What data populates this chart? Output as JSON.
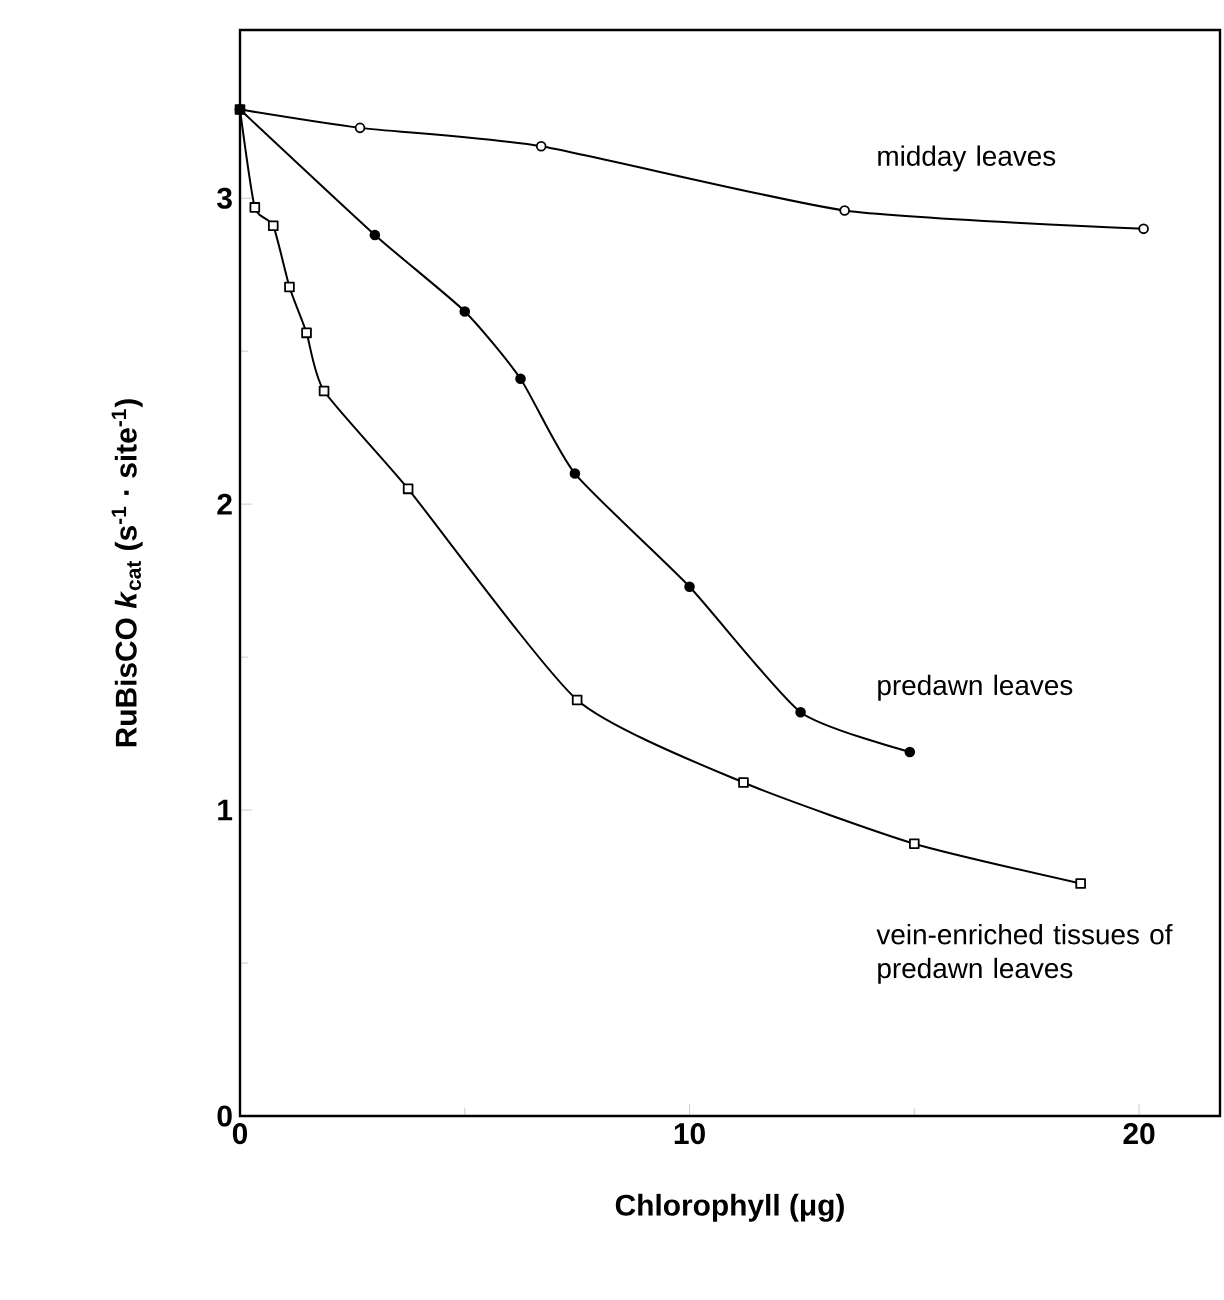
{
  "chart_data": {
    "type": "line",
    "xlabel": "Chlorophyll (μg)",
    "ylabel": "RuBisCO *k*$_{cat}$ (s$^{-1}$ · site$^{-1}$)",
    "xlim": [
      0,
      21.8
    ],
    "ylim": [
      0,
      3.55
    ],
    "xticks": [
      0,
      10,
      20
    ],
    "yticks": [
      0,
      1,
      2,
      3
    ],
    "grid": false,
    "legend": false,
    "line_style": "solid",
    "series": [
      {
        "name": "vein-enriched tissues of predawn leaves",
        "color": "#000000",
        "marker": "square",
        "x": [
          0,
          0.33,
          0.74,
          1.1,
          1.48,
          1.87,
          3.74,
          7.5,
          11.2,
          15.0,
          18.7
        ],
        "values": [
          3.29,
          2.97,
          2.91,
          2.71,
          2.56,
          2.37,
          2.05,
          1.36,
          1.09,
          0.89,
          0.76
        ]
      },
      {
        "name": "midday leaves",
        "color": "#000000",
        "marker": "circle",
        "x": [
          0,
          2.67,
          6.7,
          13.45,
          20.1
        ],
        "values": [
          3.29,
          3.23,
          3.17,
          2.96,
          2.9
        ]
      },
      {
        "name": "predawn leaves",
        "color": "#000000",
        "marker": "circle",
        "x": [
          0,
          3.0,
          5.0,
          6.24,
          7.45,
          10.0,
          12.47,
          14.9
        ],
        "values": [
          3.29,
          2.88,
          2.63,
          2.41,
          2.1,
          1.73,
          1.32,
          1.19
        ]
      }
    ]
  }
}
